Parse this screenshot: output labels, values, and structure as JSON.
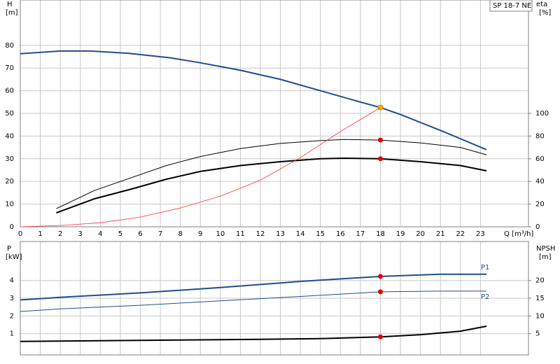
{
  "chart_data": [
    {
      "type": "line",
      "y_label": "H",
      "y_unit": "[m]",
      "y2_label": "eta",
      "y2_unit": "[%]",
      "x_label": "Q [m³/h]",
      "annotation": "SP 18-7 NE",
      "xlim": [
        0,
        25.4
      ],
      "xticks": [
        0,
        1,
        2,
        3,
        4,
        5,
        6,
        7,
        8,
        9,
        10,
        11,
        12,
        13,
        14,
        15,
        16,
        17,
        18,
        19,
        20,
        21,
        22,
        23
      ],
      "ylim": [
        0,
        100
      ],
      "yticks": [
        0,
        10,
        20,
        30,
        40,
        50,
        60,
        70,
        80
      ],
      "y2lim": [
        0,
        200
      ],
      "y2ticks": [
        0,
        20,
        40,
        60,
        80,
        100
      ],
      "grid": true,
      "series": [
        {
          "color": "#1f4e8c",
          "width": 2,
          "axis": "y",
          "x": [
            0,
            2,
            3.5,
            5.4,
            7.5,
            9,
            11,
            13,
            15,
            17,
            18,
            19,
            21,
            23.3
          ],
          "values": [
            76.3,
            77.5,
            77.5,
            76.5,
            74.5,
            72.3,
            69,
            65,
            60,
            55,
            52.6,
            49.5,
            42.5,
            34
          ],
          "duty": {
            "x": 18,
            "y": 52.6,
            "color": "#f5b800"
          }
        },
        {
          "color": "#000000",
          "width": 1,
          "axis": "y2",
          "x": [
            1.8,
            3.7,
            5.5,
            7.3,
            9,
            11,
            13,
            15,
            16.2,
            18,
            20,
            22,
            23.3
          ],
          "values": [
            16,
            32,
            43,
            54,
            62,
            69,
            73.5,
            76,
            77,
            76.5,
            74,
            70,
            63.5
          ],
          "duty": {
            "x": 18,
            "y": 76.5,
            "color": "#e00000"
          }
        },
        {
          "color": "#000000",
          "width": 2,
          "axis": "y2",
          "x": [
            1.8,
            3.7,
            5.5,
            7.3,
            9,
            11,
            13,
            15,
            16.2,
            18,
            20,
            22,
            23.3
          ],
          "values": [
            12.3,
            24.7,
            33,
            42,
            48.8,
            54,
            57.4,
            60,
            60.5,
            60,
            57.4,
            54,
            49.4
          ],
          "duty": {
            "x": 18,
            "y": 60,
            "color": "#e00000"
          }
        },
        {
          "color": "#ff3030",
          "width": 0.8,
          "axis": "y",
          "x": [
            0,
            2,
            4,
            6,
            8,
            10,
            12,
            14,
            16,
            18
          ],
          "values": [
            0,
            0.6,
            1.8,
            4.3,
            8.3,
            13.5,
            20.6,
            30.5,
            42,
            52.6
          ]
        }
      ]
    },
    {
      "type": "line",
      "y_label": "P",
      "y_unit": "[kW]",
      "y2_label": "NPSH",
      "y2_unit": "[m]",
      "xlim": [
        0,
        25.4
      ],
      "xticks": [
        0,
        1,
        2,
        3,
        4,
        5,
        6,
        7,
        8,
        9,
        10,
        11,
        12,
        13,
        14,
        15,
        16,
        17,
        18,
        19,
        20,
        21,
        22,
        23
      ],
      "ylim": [
        -0.2,
        6.2
      ],
      "yticks": [
        1,
        2,
        3,
        4
      ],
      "y2lim": [
        -1,
        31
      ],
      "y2ticks": [
        5,
        10,
        15,
        20
      ],
      "grid": true,
      "series": [
        {
          "name": "P1",
          "color": "#1f4e8c",
          "width": 2,
          "axis": "y",
          "x": [
            0,
            2,
            6,
            10,
            14,
            18,
            21,
            23.3
          ],
          "values": [
            2.9,
            3.05,
            3.3,
            3.6,
            3.95,
            4.23,
            4.35,
            4.35
          ],
          "duty": {
            "x": 18,
            "y": 4.23,
            "color": "#e00000"
          }
        },
        {
          "name": "P2",
          "color": "#1f4e8c",
          "width": 1,
          "axis": "y",
          "x": [
            0,
            2,
            6,
            10,
            14,
            18,
            21,
            23.3
          ],
          "values": [
            2.25,
            2.4,
            2.6,
            2.85,
            3.1,
            3.36,
            3.4,
            3.4
          ],
          "duty": {
            "x": 18,
            "y": 3.36,
            "color": "#e00000"
          }
        },
        {
          "color": "#000000",
          "width": 2,
          "axis": "y2",
          "x": [
            0,
            2,
            8,
            12,
            15,
            18,
            20,
            22,
            23.3
          ],
          "values": [
            2.8,
            2.9,
            3.2,
            3.4,
            3.6,
            4.1,
            4.7,
            5.7,
            7.1
          ],
          "duty": {
            "x": 18,
            "y": 4.1,
            "color": "#e00000"
          }
        }
      ]
    }
  ]
}
